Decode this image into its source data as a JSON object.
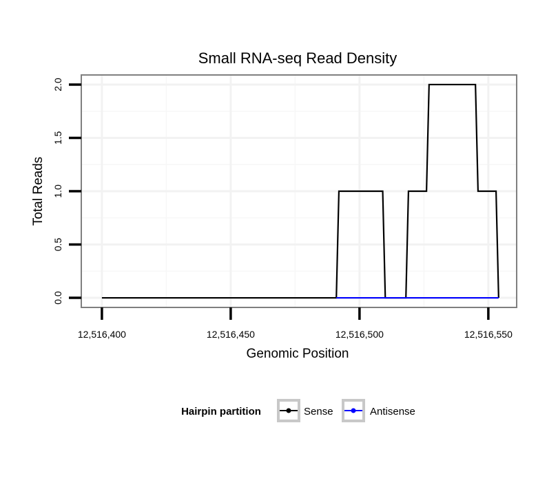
{
  "chart_data": {
    "type": "line",
    "title": "Small RNA-seq Read Density",
    "xlabel": "Genomic Position",
    "ylabel": "Total Reads",
    "xlim": [
      12516392,
      12516561
    ],
    "ylim": [
      -0.09,
      2.09
    ],
    "x_ticks": [
      12516400,
      12516450,
      12516500,
      12516550
    ],
    "x_tick_labels": [
      "12,516,400",
      "12,516,450",
      "12,516,500",
      "12,516,550"
    ],
    "y_ticks": [
      0,
      0.5,
      1,
      1.5,
      2
    ],
    "y_tick_labels": [
      "0.0",
      "0.5",
      "1.0",
      "1.5",
      "2.0"
    ],
    "grid": true,
    "legend": {
      "title": "Hairpin partition",
      "position": "bottom",
      "entries": [
        "Sense",
        "Antisense"
      ]
    },
    "series": [
      {
        "name": "Sense",
        "color": "#000000",
        "x": [
          12516400,
          12516491,
          12516492,
          12516509,
          12516510,
          12516518,
          12516519,
          12516526,
          12516527,
          12516545,
          12516546,
          12516553,
          12516554
        ],
        "y": [
          0,
          0,
          1,
          1,
          0,
          0,
          1,
          1,
          2,
          2,
          1,
          1,
          0
        ]
      },
      {
        "name": "Antisense",
        "color": "#0000ff",
        "x": [
          12516491,
          12516554
        ],
        "y": [
          0,
          0
        ]
      }
    ]
  }
}
